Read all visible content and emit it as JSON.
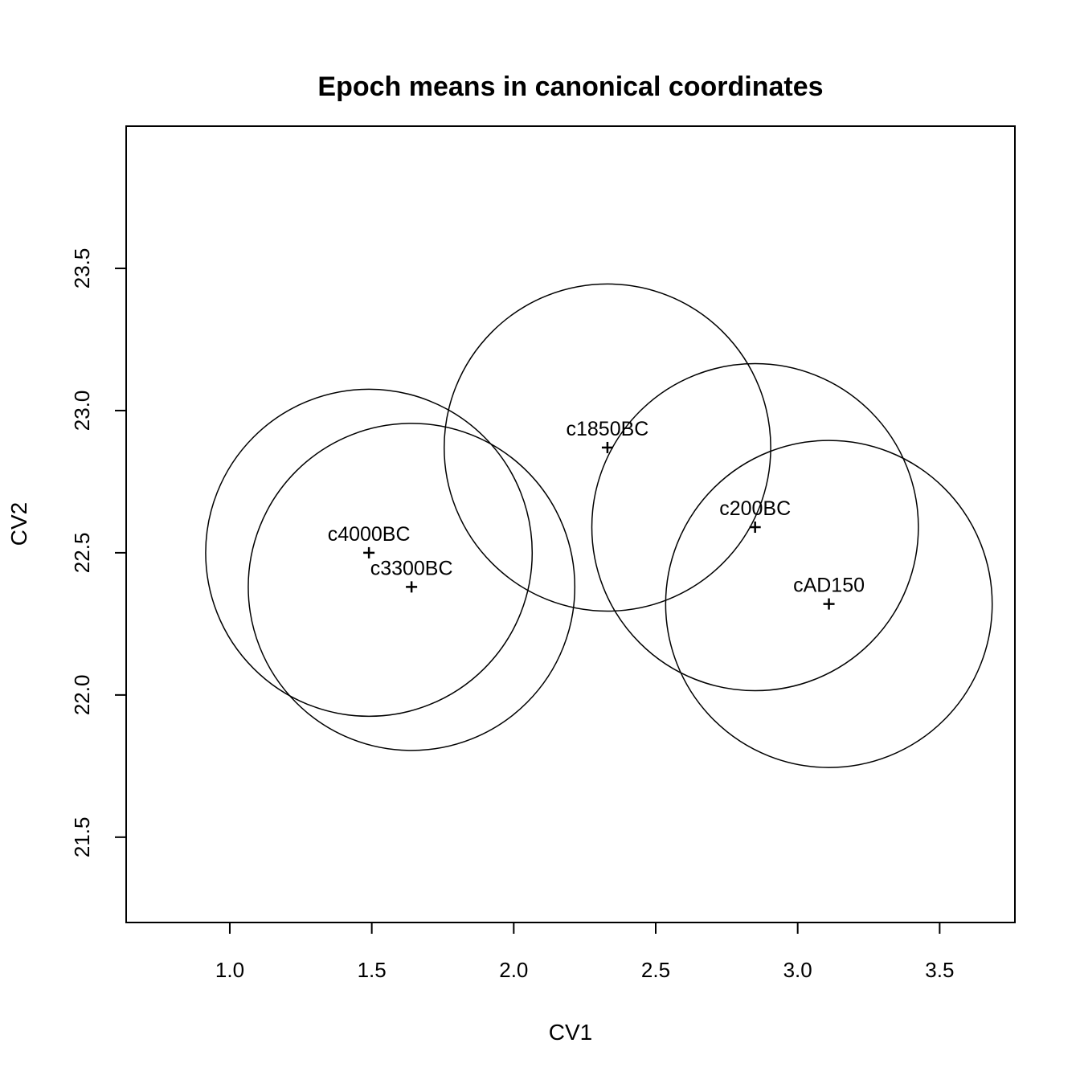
{
  "chart_data": {
    "type": "scatter",
    "title": "Epoch means in canonical coordinates",
    "xlabel": "CV1",
    "ylabel": "CV2",
    "xlim": [
      0.635,
      3.765
    ],
    "ylim": [
      21.2,
      24.0
    ],
    "x_ticks": [
      1.0,
      1.5,
      2.0,
      2.5,
      3.0,
      3.5
    ],
    "x_tick_labels": [
      "1.0",
      "1.5",
      "2.0",
      "2.5",
      "3.0",
      "3.5"
    ],
    "y_ticks": [
      21.5,
      22.0,
      22.5,
      23.0,
      23.5
    ],
    "y_tick_labels": [
      "21.5",
      "22.0",
      "22.5",
      "23.0",
      "23.5"
    ],
    "circle_radius": 0.575,
    "points": [
      {
        "label": "c4000BC",
        "x": 1.49,
        "y": 22.5
      },
      {
        "label": "c3300BC",
        "x": 1.64,
        "y": 22.38
      },
      {
        "label": "c1850BC",
        "x": 2.33,
        "y": 22.87
      },
      {
        "label": "c200BC",
        "x": 2.85,
        "y": 22.59
      },
      {
        "label": "cAD150",
        "x": 3.11,
        "y": 22.32
      }
    ]
  }
}
